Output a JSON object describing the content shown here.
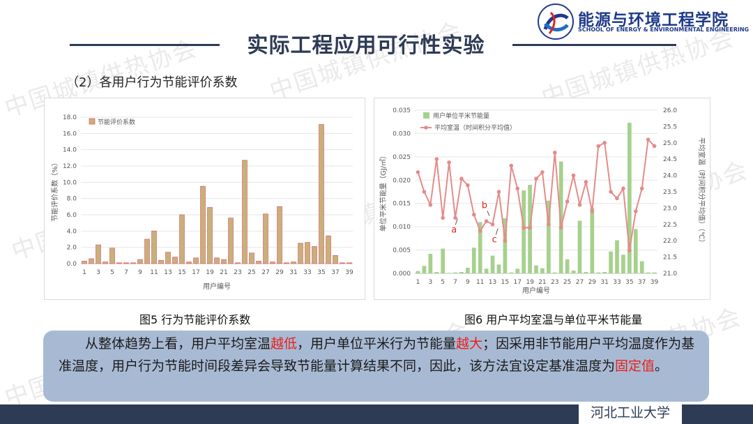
{
  "header": {
    "title": "实际工程应用可行性实验",
    "logo_cn": "能源与环境工程学院",
    "logo_en": "SCHOOL OF ENERGY & ENVIRONMENTAL ENGINEERING",
    "watermark": "中国城镇供热协会"
  },
  "subtitle": "（2）各用户行为节能评价系数",
  "captions": {
    "fig5": "图5 行为节能评价系数",
    "fig6": "图6 用户平均室温与单位平米节能量"
  },
  "summary": {
    "part1": "从整体趋势上看，用户平均室温",
    "em1": "越低",
    "part2": "，用户单位平米行为节能量",
    "em2": "越大",
    "part3": "；因采用非节能用户平均温度作为基准温度，用户行为节能时间段差异会导致节能量计算结果不同，因此，该方法宜设定基准温度为",
    "em3": "固定值",
    "part4": "。"
  },
  "footer": {
    "university": "河北工业大学"
  },
  "colors": {
    "bar_fig5": "#c9b07a",
    "bar_fig5_edge": "#d46a6a",
    "bar_fig6": "#a6d18d",
    "line_fig6": "#e58a8a",
    "navy": "#2e3b55",
    "accent_red": "#e8201c"
  },
  "chart_data": [
    {
      "type": "bar",
      "id": "fig5",
      "title": "",
      "xlabel": "用户编号",
      "ylabel": "节能评价系数（%）",
      "legend": "节能评价系数",
      "ylim": [
        0,
        18
      ],
      "yticks": [
        "0.0",
        "2.0",
        "4.0",
        "6.0",
        "8.0",
        "10.0",
        "12.0",
        "14.0",
        "16.0",
        "18.0"
      ],
      "x_tick_labels": [
        "1",
        "3",
        "5",
        "7",
        "9",
        "11",
        "13",
        "15",
        "17",
        "19",
        "21",
        "23",
        "25",
        "27",
        "29",
        "31",
        "33",
        "35",
        "37",
        "39"
      ],
      "categories": [
        1,
        2,
        3,
        4,
        5,
        6,
        7,
        8,
        9,
        10,
        11,
        12,
        13,
        14,
        15,
        16,
        17,
        18,
        19,
        20,
        21,
        22,
        23,
        24,
        25,
        26,
        27,
        28,
        29,
        30,
        31,
        32,
        33,
        34,
        35,
        36,
        37,
        38,
        39
      ],
      "values": [
        0.3,
        0.6,
        2.3,
        0.2,
        1.9,
        0.1,
        0.1,
        0.1,
        0.5,
        3.0,
        4.0,
        0.4,
        1.4,
        0.8,
        6.0,
        0.2,
        0.7,
        9.5,
        6.9,
        0.7,
        0.5,
        5.6,
        0.1,
        12.7,
        1.3,
        0.3,
        6.1,
        0.2,
        7.0,
        0.1,
        0.2,
        2.5,
        2.6,
        2.1,
        17.1,
        3.4,
        1.0,
        0.1,
        0.1
      ]
    },
    {
      "type": "bar+line",
      "id": "fig6",
      "title": "",
      "xlabel": "用户编号",
      "ylabel_left": "单位平米节能量（GJ/㎡）",
      "ylabel_right": "平均室温（时间积分平均值）（℃）",
      "ylim_left": [
        0,
        0.035
      ],
      "ylim_right": [
        21.0,
        26.0
      ],
      "yticks_left": [
        "0.000",
        "0.005",
        "0.010",
        "0.015",
        "0.020",
        "0.025",
        "0.030",
        "0.035"
      ],
      "yticks_right": [
        "21.0",
        "21.5",
        "22.0",
        "22.5",
        "23.0",
        "23.5",
        "24.0",
        "24.5",
        "25.0",
        "25.5",
        "26.0"
      ],
      "x_tick_labels": [
        "1",
        "3",
        "5",
        "7",
        "9",
        "11",
        "13",
        "15",
        "17",
        "19",
        "21",
        "23",
        "25",
        "27",
        "29",
        "31",
        "33",
        "35",
        "37",
        "39"
      ],
      "categories": [
        1,
        2,
        3,
        4,
        5,
        6,
        7,
        8,
        9,
        10,
        11,
        12,
        13,
        14,
        15,
        16,
        17,
        18,
        19,
        20,
        21,
        22,
        23,
        24,
        25,
        26,
        27,
        28,
        29,
        30,
        31,
        32,
        33,
        34,
        35,
        36,
        37,
        38,
        39
      ],
      "series": [
        {
          "name": "用户单位平米节能量",
          "kind": "bar",
          "axis": "left",
          "values": [
            0.0005,
            0.0016,
            0.0042,
            0.0003,
            0.0053,
            0.0001,
            0.0002,
            0.0003,
            0.0012,
            0.0055,
            0.011,
            0.001,
            0.0038,
            0.0019,
            0.0118,
            0.0002,
            0.001,
            0.0178,
            0.019,
            0.0017,
            0.0011,
            0.0156,
            0.0002,
            0.024,
            0.003,
            0.0006,
            0.0113,
            0.0003,
            0.014,
            0.0002,
            0.0003,
            0.0047,
            0.0071,
            0.004,
            0.0323,
            0.0095,
            0.0026,
            0.0002,
            0.0002
          ]
        },
        {
          "name": "平均室温（时间积分平均值）",
          "kind": "line",
          "axis": "right",
          "values": [
            24.1,
            23.5,
            23.1,
            24.5,
            22.7,
            24.4,
            22.7,
            23.9,
            23.7,
            22.8,
            22.3,
            22.6,
            22.5,
            23.5,
            22.0,
            24.3,
            23.6,
            22.4,
            22.4,
            23.9,
            24.1,
            22.5,
            24.7,
            22.4,
            23.2,
            24.0,
            23.1,
            23.8,
            22.9,
            24.9,
            25.0,
            23.5,
            23.3,
            23.6,
            21.7,
            22.9,
            23.6,
            25.1,
            24.9
          ]
        }
      ],
      "annotations": [
        {
          "text": "a",
          "x": 6.8,
          "y_right": 22.25
        },
        {
          "text": "b",
          "x": 11.7,
          "y_right": 23.0
        },
        {
          "text": "c",
          "x": 13.3,
          "y_right": 21.95
        }
      ]
    }
  ]
}
